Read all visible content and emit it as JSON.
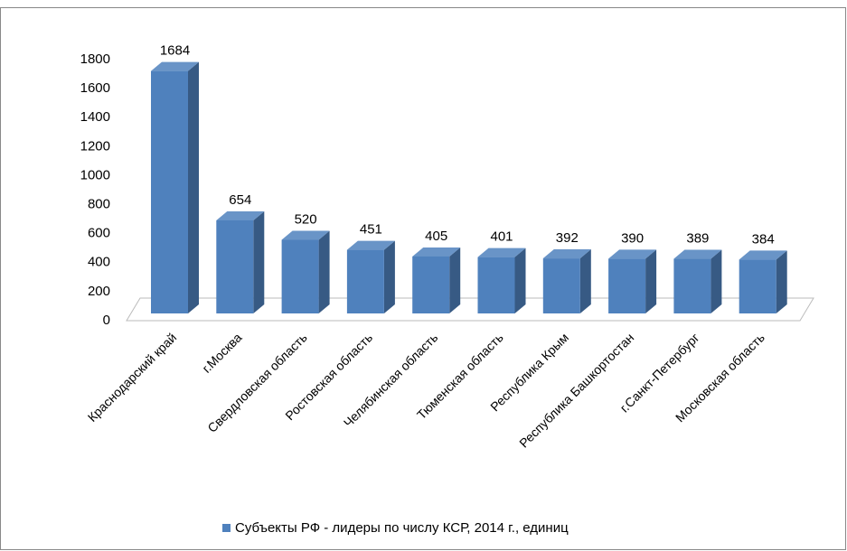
{
  "chart_data": {
    "type": "bar3d",
    "categories": [
      "Краснодарский край",
      "г.Москва",
      "Свердловская область",
      "Ростовская область",
      "Челябинская область",
      "Тюменская область",
      "Республика Крым",
      "Республика Башкортостан",
      "г.Санкт-Петербург",
      "Московская область"
    ],
    "series": [
      {
        "name": "Субъекты РФ - лидеры по числу КСР, 2014 г., единиц",
        "color": "#4f81bd",
        "values": [
          1684,
          654,
          520,
          451,
          405,
          401,
          392,
          390,
          389,
          384
        ]
      }
    ],
    "ylim": [
      0,
      1800
    ],
    "yticks": [
      0,
      200,
      400,
      600,
      800,
      1000,
      1200,
      1400,
      1600,
      1800
    ],
    "data_labels": true,
    "legend": "bottom"
  }
}
